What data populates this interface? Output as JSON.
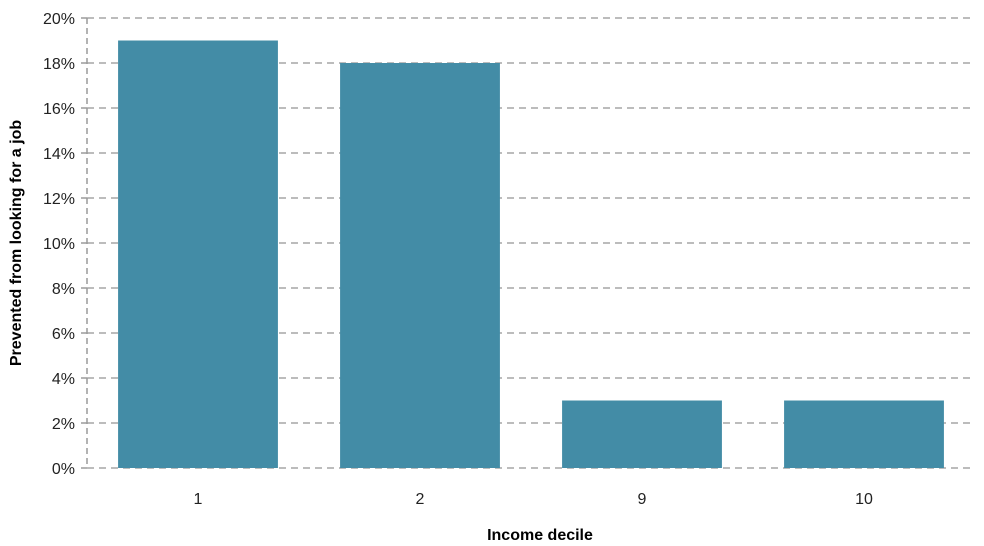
{
  "chart_data": {
    "type": "bar",
    "categories": [
      "1",
      "2",
      "9",
      "10"
    ],
    "values": [
      19,
      18,
      3,
      3
    ],
    "xlabel": "Income decile",
    "ylabel": "Prevented from looking for a job",
    "ylim": [
      0,
      20
    ],
    "yticks": [
      0,
      2,
      4,
      6,
      8,
      10,
      12,
      14,
      16,
      18,
      20
    ],
    "ytick_suffix": "%",
    "grid": true,
    "bar_color": "#438ca6"
  }
}
